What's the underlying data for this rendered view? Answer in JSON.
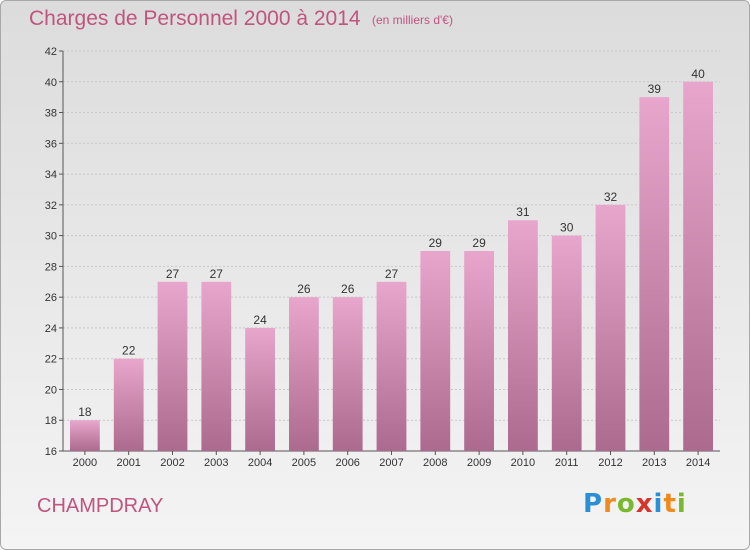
{
  "title": "Charges de Personnel 2000 à 2014",
  "subtitle": "(en milliers d'€)",
  "commune": "CHAMPDRAY",
  "logo": {
    "letters": [
      "P",
      "r",
      "o",
      "x",
      "i",
      "t",
      "i"
    ],
    "colors": [
      "#2a8fd6",
      "#f08a1c",
      "#7ab82e",
      "#d8342c",
      "#2a8fd6",
      "#f08a1c",
      "#7ab82e"
    ]
  },
  "colors": {
    "bar_top": "#e8a6cc",
    "bar_bottom": "#ac6a8e",
    "text_accent": "#c0547e"
  },
  "chart_data": {
    "type": "bar",
    "categories": [
      "2000",
      "2001",
      "2002",
      "2003",
      "2004",
      "2005",
      "2006",
      "2007",
      "2008",
      "2009",
      "2010",
      "2011",
      "2012",
      "2013",
      "2014"
    ],
    "values": [
      18,
      22,
      27,
      27,
      24,
      26,
      26,
      27,
      29,
      29,
      31,
      30,
      32,
      39,
      40
    ],
    "ylim": [
      16,
      42
    ],
    "yticks": [
      16,
      18,
      20,
      22,
      24,
      26,
      28,
      30,
      32,
      34,
      36,
      38,
      40,
      42
    ],
    "grid": true
  }
}
